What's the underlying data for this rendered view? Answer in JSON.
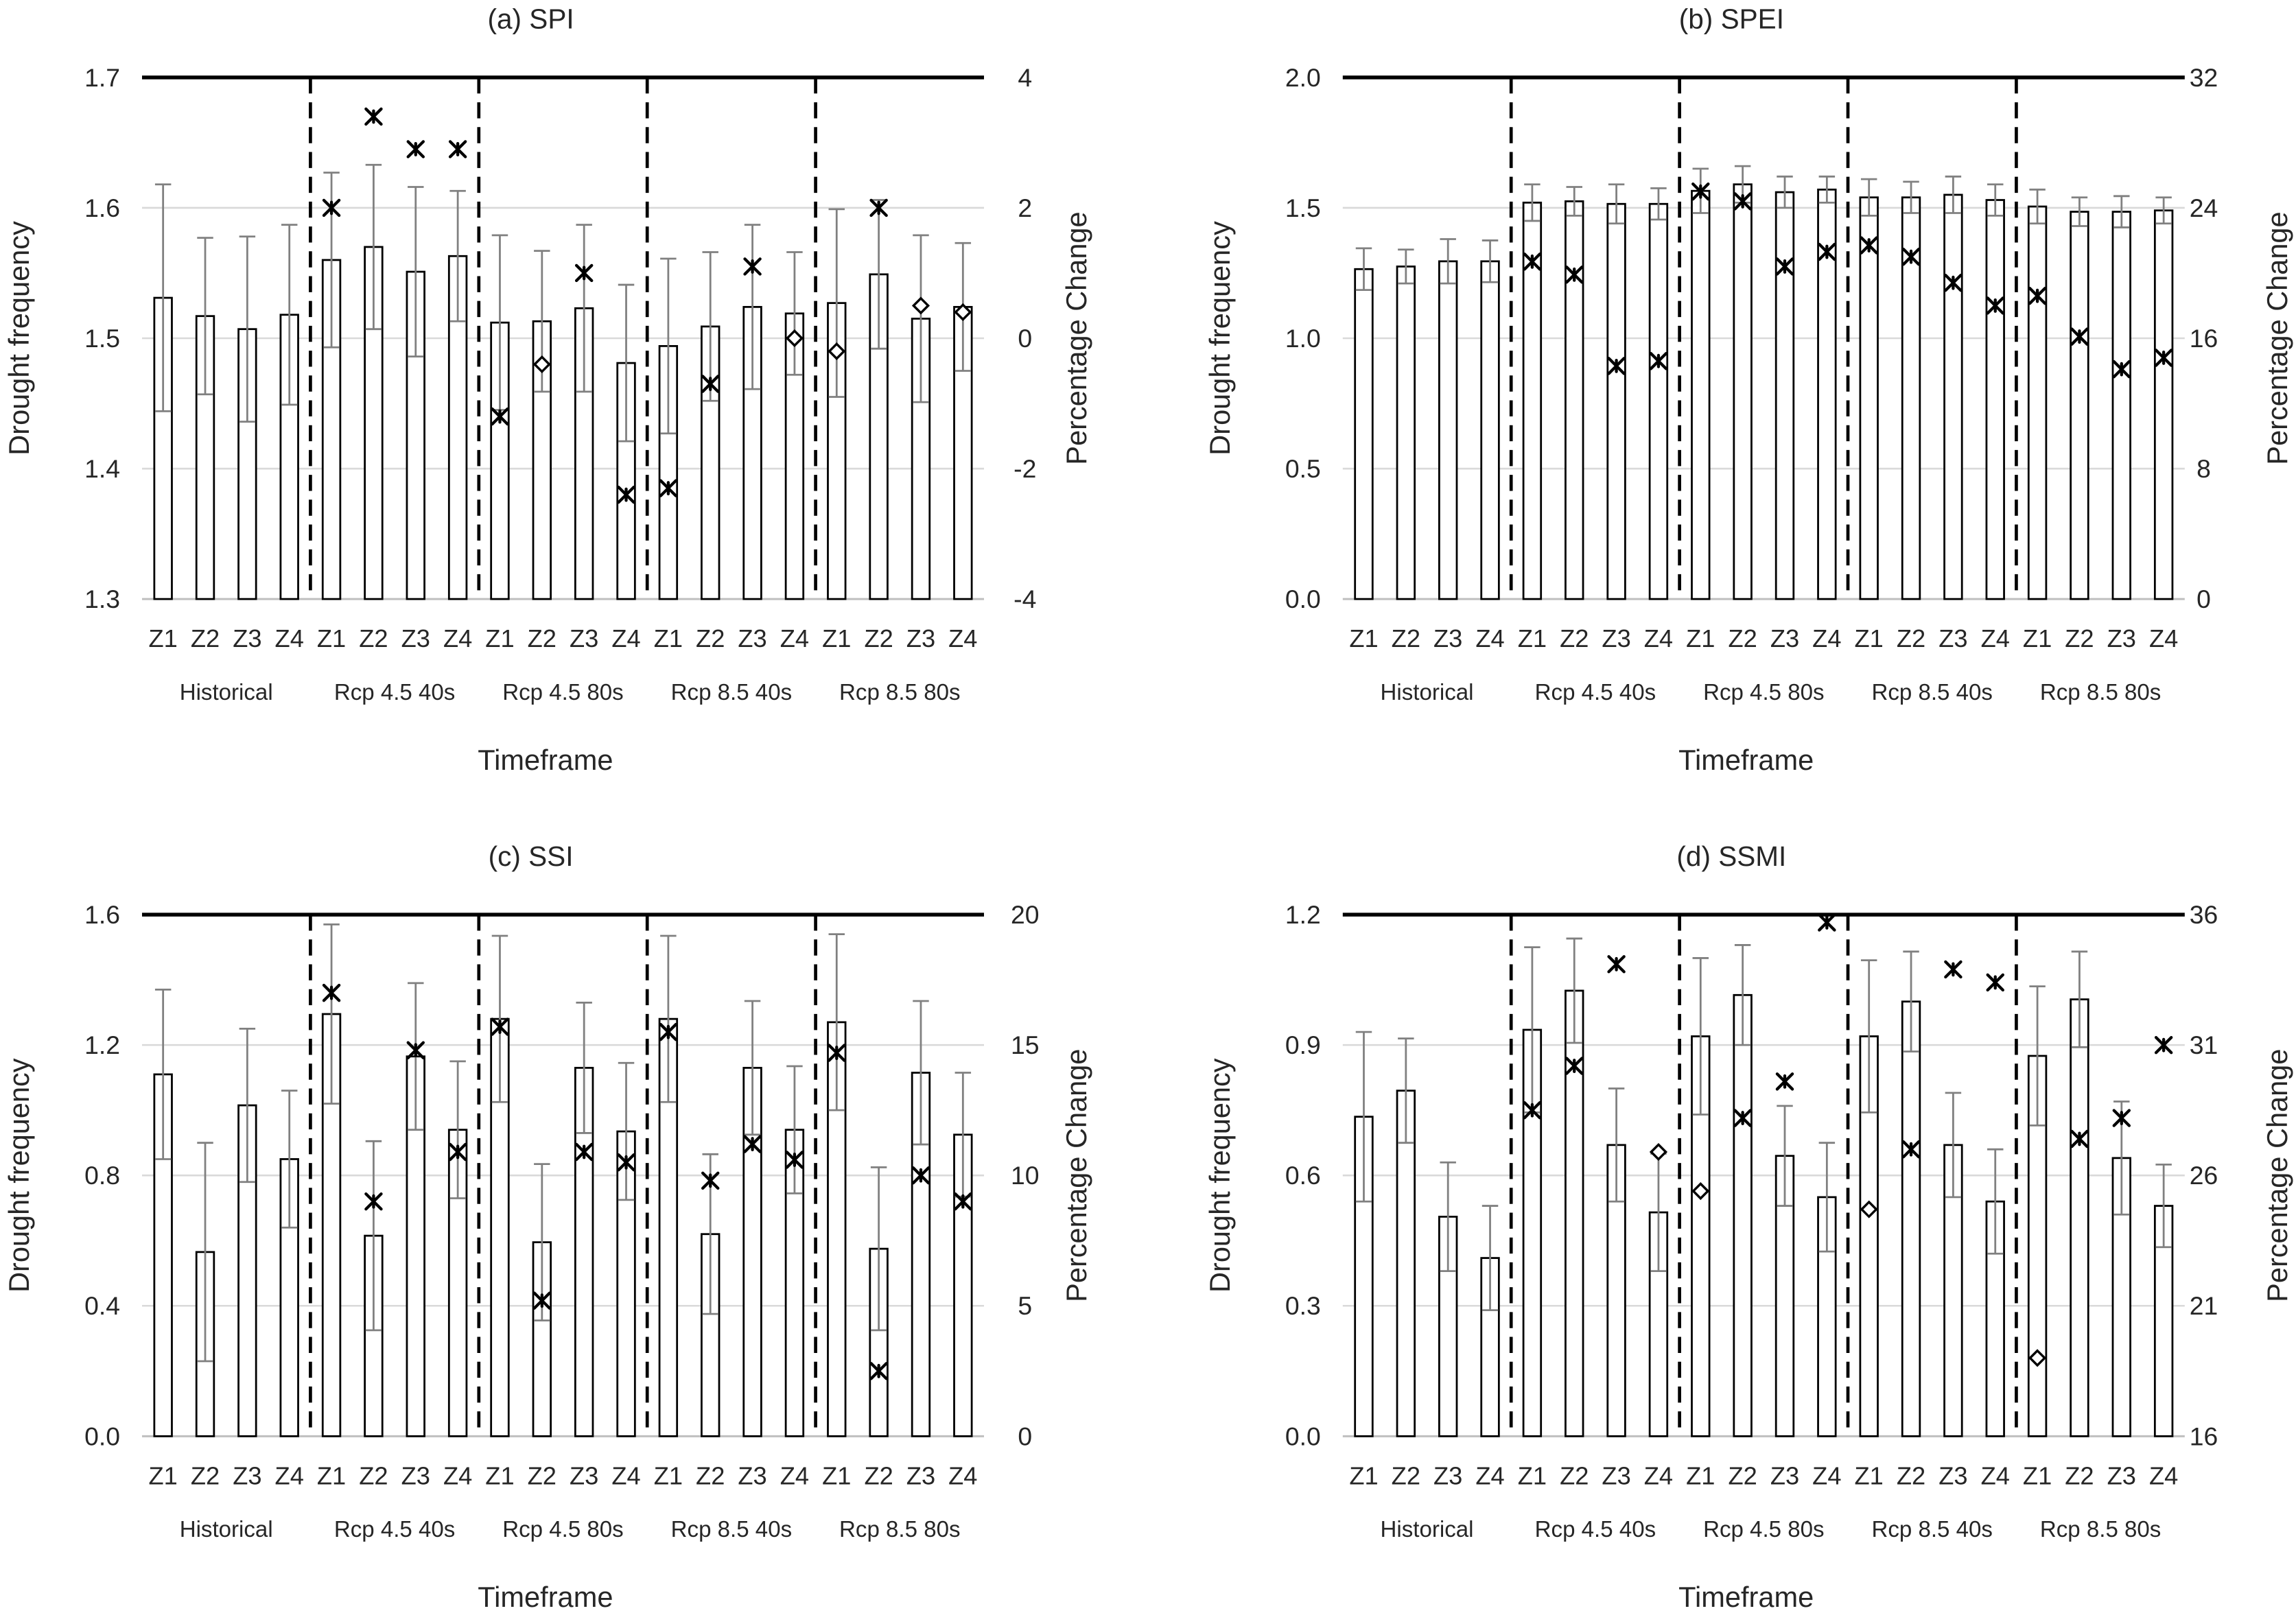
{
  "colors": {
    "bar_fill": "#ffffff",
    "bar_edge": "#000000",
    "error_bar": "#808080",
    "marker": "#000000",
    "gridline": "#d9d9d9",
    "axis_line": "#bfbfbf",
    "separator": "#000000",
    "frame_top": "#000000"
  },
  "chart_data": [
    {
      "type": "bar",
      "title": "(a) SPI",
      "xlabel": "Timeframe",
      "ylabel": "Drought frequency",
      "y2label": "Percentage Change",
      "ylim": [
        1.3,
        1.7
      ],
      "y2lim": [
        -4,
        4
      ],
      "y_ticks": [
        "1.3",
        "1.4",
        "1.5",
        "1.6",
        "1.7"
      ],
      "y2_ticks": [
        "-4",
        "-2",
        "0",
        "2",
        "4"
      ],
      "grid": true,
      "categories": [
        "Z1",
        "Z2",
        "Z3",
        "Z4"
      ],
      "groups": [
        {
          "name": "Historical",
          "values": [
            1.531,
            1.517,
            1.507,
            1.518
          ],
          "error": [
            0.087,
            0.06,
            0.071,
            0.069
          ]
        },
        {
          "name": "Rcp 4.5 40s",
          "values": [
            1.56,
            1.57,
            1.551,
            1.563
          ],
          "error": [
            0.067,
            0.063,
            0.065,
            0.05
          ],
          "percentage_change": [
            2.0,
            3.4,
            2.9,
            2.9
          ],
          "markers": [
            "star",
            "star",
            "star",
            "star"
          ]
        },
        {
          "name": "Rcp 4.5 80s",
          "values": [
            1.512,
            1.513,
            1.523,
            1.481
          ],
          "error": [
            0.067,
            0.054,
            0.064,
            0.06
          ],
          "percentage_change": [
            -1.2,
            -0.4,
            1.0,
            -2.4
          ],
          "markers": [
            "star",
            "diamond",
            "star",
            "star"
          ]
        },
        {
          "name": "Rcp 8.5 40s",
          "values": [
            1.494,
            1.509,
            1.524,
            1.519
          ],
          "error": [
            0.067,
            0.057,
            0.063,
            0.047
          ],
          "percentage_change": [
            -2.3,
            -0.7,
            1.1,
            0.0
          ],
          "markers": [
            "star",
            "star",
            "star",
            "diamond"
          ]
        },
        {
          "name": "Rcp 8.5 80s",
          "values": [
            1.527,
            1.549,
            1.515,
            1.524
          ],
          "error": [
            0.072,
            0.057,
            0.064,
            0.049
          ],
          "percentage_change": [
            -0.2,
            2.0,
            0.5,
            0.4
          ],
          "markers": [
            "diamond",
            "star",
            "diamond",
            "diamond"
          ]
        }
      ]
    },
    {
      "type": "bar",
      "title": "(b) SPEI",
      "xlabel": "Timeframe",
      "ylabel": "Drought frequency",
      "y2label": "Percentage Change",
      "ylim": [
        0,
        2
      ],
      "y2lim": [
        0,
        32
      ],
      "y_ticks": [
        "0.0",
        "0.5",
        "1.0",
        "1.5",
        "2.0"
      ],
      "y2_ticks": [
        "0",
        "8",
        "16",
        "24",
        "32"
      ],
      "grid": true,
      "categories": [
        "Z1",
        "Z2",
        "Z3",
        "Z4"
      ],
      "groups": [
        {
          "name": "Historical",
          "values": [
            1.265,
            1.275,
            1.295,
            1.295
          ],
          "error": [
            0.08,
            0.065,
            0.085,
            0.08
          ]
        },
        {
          "name": "Rcp 4.5 40s",
          "values": [
            1.52,
            1.525,
            1.515,
            1.515
          ],
          "error": [
            0.07,
            0.055,
            0.075,
            0.06
          ],
          "percentage_change": [
            20.7,
            19.9,
            14.3,
            14.6
          ],
          "markers": [
            "star",
            "star",
            "star",
            "star"
          ]
        },
        {
          "name": "Rcp 4.5 80s",
          "values": [
            1.565,
            1.59,
            1.56,
            1.57
          ],
          "error": [
            0.085,
            0.07,
            0.06,
            0.05
          ],
          "percentage_change": [
            25.0,
            24.4,
            20.4,
            21.3
          ],
          "markers": [
            "star",
            "star",
            "star",
            "star"
          ]
        },
        {
          "name": "Rcp 8.5 40s",
          "values": [
            1.54,
            1.54,
            1.55,
            1.53
          ],
          "error": [
            0.07,
            0.06,
            0.07,
            0.06
          ],
          "percentage_change": [
            21.7,
            21.0,
            19.4,
            18.0
          ],
          "markers": [
            "star",
            "star",
            "star",
            "star"
          ]
        },
        {
          "name": "Rcp 8.5 80s",
          "values": [
            1.505,
            1.485,
            1.485,
            1.49
          ],
          "error": [
            0.065,
            0.055,
            0.06,
            0.05
          ],
          "percentage_change": [
            18.6,
            16.1,
            14.1,
            14.8
          ],
          "markers": [
            "star",
            "star",
            "star",
            "star"
          ]
        }
      ]
    },
    {
      "type": "bar",
      "title": "(c) SSI",
      "xlabel": "Timeframe",
      "ylabel": "Drought frequency",
      "y2label": "Percentage Change",
      "ylim": [
        0,
        1.6
      ],
      "y2lim": [
        0,
        20
      ],
      "y_ticks": [
        "0.0",
        "0.4",
        "0.8",
        "1.2",
        "1.6"
      ],
      "y2_ticks": [
        "0",
        "5",
        "10",
        "15",
        "20"
      ],
      "grid": true,
      "categories": [
        "Z1",
        "Z2",
        "Z3",
        "Z4"
      ],
      "groups": [
        {
          "name": "Historical",
          "values": [
            1.11,
            0.565,
            1.015,
            0.85
          ],
          "error": [
            0.26,
            0.335,
            0.235,
            0.21
          ]
        },
        {
          "name": "Rcp 4.5 40s",
          "values": [
            1.295,
            0.615,
            1.165,
            0.94
          ],
          "error": [
            0.275,
            0.29,
            0.225,
            0.21
          ],
          "percentage_change": [
            17.0,
            9.0,
            14.8,
            10.9
          ],
          "markers": [
            "star",
            "star",
            "star",
            "star"
          ]
        },
        {
          "name": "Rcp 4.5 80s",
          "values": [
            1.28,
            0.595,
            1.13,
            0.935
          ],
          "error": [
            0.255,
            0.24,
            0.2,
            0.21
          ],
          "percentage_change": [
            15.7,
            5.2,
            10.9,
            10.5
          ],
          "markers": [
            "star",
            "star",
            "star",
            "star"
          ]
        },
        {
          "name": "Rcp 8.5 40s",
          "values": [
            1.28,
            0.62,
            1.13,
            0.94
          ],
          "error": [
            0.255,
            0.245,
            0.205,
            0.195
          ],
          "percentage_change": [
            15.5,
            9.8,
            11.2,
            10.6
          ],
          "markers": [
            "star",
            "star",
            "star",
            "star"
          ]
        },
        {
          "name": "Rcp 8.5 80s",
          "values": [
            1.27,
            0.575,
            1.115,
            0.925
          ],
          "error": [
            0.27,
            0.25,
            0.22,
            0.19
          ],
          "percentage_change": [
            14.7,
            2.5,
            10.0,
            9.0
          ],
          "markers": [
            "star",
            "star",
            "star",
            "star"
          ]
        }
      ]
    },
    {
      "type": "bar",
      "title": "(d) SSMI",
      "xlabel": "Timeframe",
      "ylabel": "Drought frequency",
      "y2label": "Percentage Change",
      "ylim": [
        0,
        1.2
      ],
      "y2lim": [
        16,
        36
      ],
      "y_ticks": [
        "0.0",
        "0.3",
        "0.6",
        "0.9",
        "1.2"
      ],
      "y2_ticks": [
        "16",
        "21",
        "26",
        "31",
        "36"
      ],
      "grid": true,
      "categories": [
        "Z1",
        "Z2",
        "Z3",
        "Z4"
      ],
      "groups": [
        {
          "name": "Historical",
          "values": [
            0.735,
            0.795,
            0.505,
            0.41
          ],
          "error": [
            0.195,
            0.12,
            0.125,
            0.12
          ]
        },
        {
          "name": "Rcp 4.5 40s",
          "values": [
            0.935,
            1.025,
            0.67,
            0.515
          ],
          "error": [
            0.19,
            0.12,
            0.13,
            0.135
          ],
          "percentage_change": [
            28.5,
            30.2,
            34.1,
            26.9
          ],
          "markers": [
            "star",
            "star",
            "star",
            "diamond"
          ]
        },
        {
          "name": "Rcp 4.5 80s",
          "values": [
            0.92,
            1.015,
            0.645,
            0.55
          ],
          "error": [
            0.18,
            0.115,
            0.115,
            0.125
          ],
          "percentage_change": [
            25.4,
            28.2,
            29.6,
            35.7
          ],
          "markers": [
            "diamond",
            "star",
            "star",
            "star"
          ]
        },
        {
          "name": "Rcp 8.5 40s",
          "values": [
            0.92,
            1.0,
            0.67,
            0.54
          ],
          "error": [
            0.175,
            0.115,
            0.12,
            0.12
          ],
          "percentage_change": [
            24.7,
            27.0,
            33.9,
            33.4
          ],
          "markers": [
            "diamond",
            "star",
            "star",
            "star"
          ]
        },
        {
          "name": "Rcp 8.5 80s",
          "values": [
            0.875,
            1.005,
            0.64,
            0.53
          ],
          "error": [
            0.16,
            0.11,
            0.13,
            0.095
          ],
          "percentage_change": [
            19.0,
            27.4,
            28.2,
            31.0
          ],
          "markers": [
            "diamond",
            "star",
            "star",
            "star"
          ]
        }
      ]
    }
  ]
}
